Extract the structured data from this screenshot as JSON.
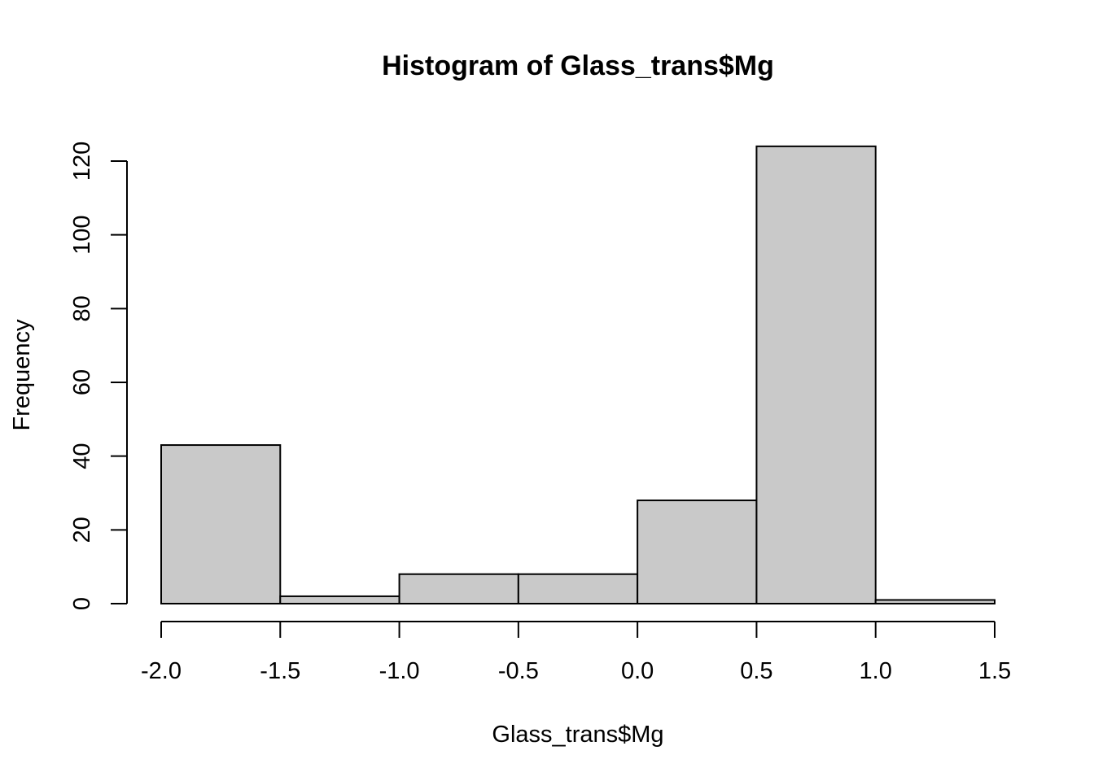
{
  "chart_data": {
    "type": "bar",
    "title": "Histogram of Glass_trans$Mg",
    "xlabel": "Glass_trans$Mg",
    "ylabel": "Frequency",
    "bins": [
      {
        "start": -2.0,
        "end": -1.5,
        "count": 43
      },
      {
        "start": -1.5,
        "end": -1.0,
        "count": 2
      },
      {
        "start": -1.0,
        "end": -0.5,
        "count": 8
      },
      {
        "start": -0.5,
        "end": 0.0,
        "count": 8
      },
      {
        "start": 0.0,
        "end": 0.5,
        "count": 28
      },
      {
        "start": 0.5,
        "end": 1.0,
        "count": 124
      },
      {
        "start": 1.0,
        "end": 1.5,
        "count": 1
      }
    ],
    "xlim": [
      -2.0,
      1.5
    ],
    "ylim": [
      0,
      124
    ],
    "x_ticks": [
      "-2.0",
      "-1.5",
      "-1.0",
      "-0.5",
      "0.0",
      "0.5",
      "1.0",
      "1.5"
    ],
    "y_ticks": [
      "0",
      "20",
      "40",
      "60",
      "80",
      "100",
      "120"
    ],
    "bar_fill": "#c9c9c9",
    "bar_stroke": "#000000",
    "grid": false,
    "legend": "none"
  }
}
